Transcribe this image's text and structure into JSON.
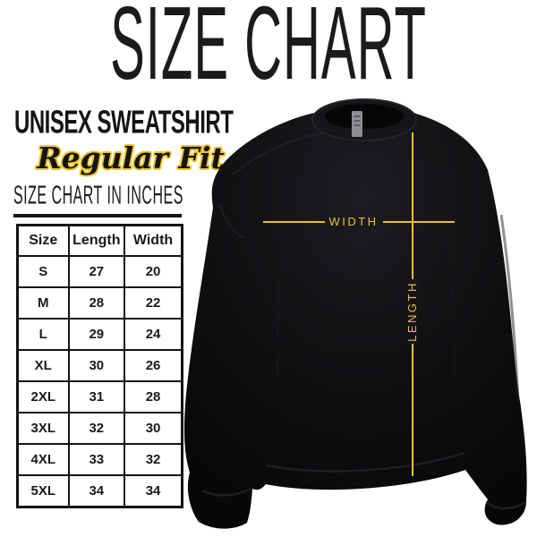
{
  "page": {
    "title": "SIZE CHART"
  },
  "product": {
    "name": "UNISEX SWEATSHIRT",
    "fit": "Regular Fit"
  },
  "size_table": {
    "heading": "SIZE CHART IN INCHES",
    "headers": [
      "Size",
      "Length",
      "Width"
    ],
    "rows": [
      [
        "S",
        "27",
        "20"
      ],
      [
        "M",
        "28",
        "22"
      ],
      [
        "L",
        "29",
        "24"
      ],
      [
        "XL",
        "30",
        "26"
      ],
      [
        "2XL",
        "31",
        "28"
      ],
      [
        "3XL",
        "32",
        "30"
      ],
      [
        "4XL",
        "33",
        "32"
      ],
      [
        "5XL",
        "34",
        "34"
      ]
    ]
  },
  "measurements": {
    "width_label": "WIDTH",
    "length_label": "LENGTH"
  },
  "colors": {
    "accent_yellow": "#e7c132",
    "garment_black": "#0b0b0d",
    "text_black": "#141414",
    "background": "#ffffff"
  }
}
